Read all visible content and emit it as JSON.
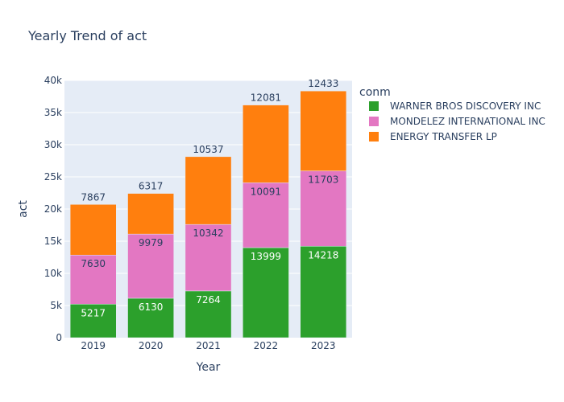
{
  "chart_data": {
    "type": "bar",
    "stacked": true,
    "title": "Yearly Trend of act",
    "xlabel": "Year",
    "ylabel": "act",
    "categories": [
      "2019",
      "2020",
      "2021",
      "2022",
      "2023"
    ],
    "ylim": [
      0,
      40000
    ],
    "yticks": [
      0,
      5000,
      10000,
      15000,
      20000,
      25000,
      30000,
      35000,
      40000
    ],
    "ytick_labels": [
      "0",
      "5k",
      "10k",
      "15k",
      "20k",
      "25k",
      "30k",
      "35k",
      "40k"
    ],
    "grid": true,
    "legend": {
      "title": "conm",
      "placement": "top-right"
    },
    "series": [
      {
        "name": "WARNER BROS DISCOVERY INC",
        "color": "#2ca02c",
        "values": [
          5217,
          6130,
          7264,
          13999,
          14218
        ]
      },
      {
        "name": "MONDELEZ INTERNATIONAL INC",
        "color": "#e377c2",
        "values": [
          7630,
          9979,
          10342,
          10091,
          11703
        ]
      },
      {
        "name": "ENERGY TRANSFER LP",
        "color": "#ff7f0e",
        "values": [
          7867,
          6317,
          10537,
          12081,
          12433
        ]
      }
    ]
  },
  "colors": {
    "plot_background": "#e5ecf6",
    "grid": "#ffffff",
    "text": "#2a3f5f"
  }
}
